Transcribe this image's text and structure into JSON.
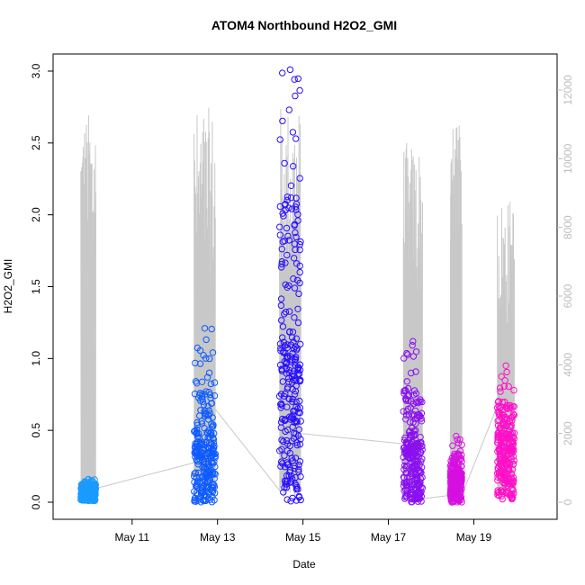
{
  "chart_data": {
    "type": "scatter",
    "title": "ATOM4 Northbound H2O2_GMI",
    "xlabel": "Date",
    "ylabel": "H2O2_GMI",
    "x_ticks": [
      "May 11",
      "May 13",
      "May 15",
      "May 17",
      "May 19"
    ],
    "x_tick_days": [
      11,
      13,
      15,
      17,
      19
    ],
    "xlim": [
      9.15,
      20.95
    ],
    "ylim": [
      0,
      3.0
    ],
    "y_ticks": [
      "0.0",
      "0.5",
      "1.0",
      "1.5",
      "2.0",
      "2.5",
      "3.0"
    ],
    "y_tick_values": [
      0,
      0.5,
      1.0,
      1.5,
      2.0,
      2.5,
      3.0
    ],
    "y2_ticks": [
      "0",
      "2000",
      "4000",
      "6000",
      "8000",
      "10000",
      "12000"
    ],
    "y2_tick_values": [
      0,
      2000,
      4000,
      6000,
      8000,
      10000,
      12000
    ],
    "y2lim": [
      0,
      12000
    ],
    "grid": false,
    "series": [
      {
        "color": "#1a9bff",
        "x_range": [
          9.8,
          10.15
        ],
        "y_min": 0.01,
        "y_max": 0.16,
        "y_typical": 0.08
      },
      {
        "color": "#0e5bff",
        "x_range": [
          12.45,
          12.95
        ],
        "y_min": 0.0,
        "y_max": 1.21,
        "y_typical": 0.3
      },
      {
        "color": "#2a10ff",
        "x_range": [
          14.45,
          14.95
        ],
        "y_min": 0.0,
        "y_max": 3.01,
        "y_typical": 0.8
      },
      {
        "color": "#8a10f0",
        "x_range": [
          17.35,
          17.8
        ],
        "y_min": 0.0,
        "y_max": 1.12,
        "y_typical": 0.3
      },
      {
        "color": "#d610e0",
        "x_range": [
          18.45,
          18.72
        ],
        "y_min": 0.0,
        "y_max": 0.46,
        "y_typical": 0.15
      },
      {
        "color": "#ff10c8",
        "x_range": [
          19.55,
          19.95
        ],
        "y_min": 0.02,
        "y_max": 0.95,
        "y_typical": 0.35
      }
    ],
    "altitude_trace": {
      "color": "#c8c8c8",
      "segments": [
        {
          "x_range": [
            9.8,
            10.15
          ],
          "peak": 11400
        },
        {
          "x_range": [
            12.45,
            12.95
          ],
          "peak": 11500
        },
        {
          "x_range": [
            14.45,
            14.95
          ],
          "peak": 11600
        },
        {
          "x_range": [
            17.35,
            17.8
          ],
          "peak": 10500
        },
        {
          "x_range": [
            18.45,
            18.72
          ],
          "peak": 11000
        },
        {
          "x_range": [
            19.55,
            19.95
          ],
          "peak": 8900
        }
      ],
      "connections": [
        [
          10.15,
          400
        ],
        [
          12.45,
          1150
        ],
        [
          12.95,
          2700
        ],
        [
          14.45,
          350
        ],
        [
          14.95,
          2000
        ],
        [
          17.35,
          1700
        ],
        [
          17.8,
          100
        ],
        [
          18.45,
          200
        ],
        [
          18.72,
          200
        ],
        [
          19.55,
          2800
        ]
      ]
    }
  }
}
